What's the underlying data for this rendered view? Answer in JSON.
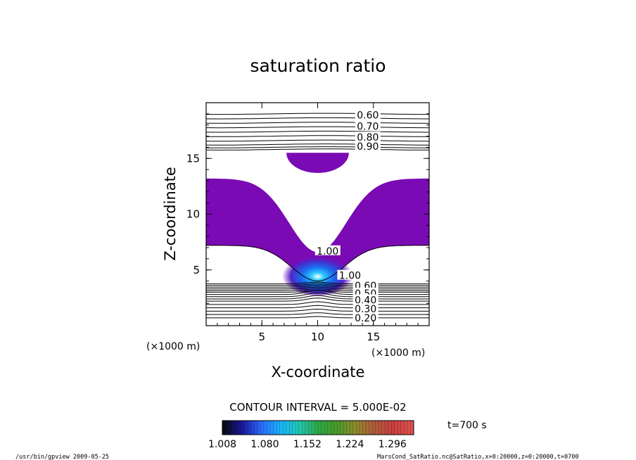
{
  "chart_data": {
    "type": "heatmap",
    "title": "saturation ratio",
    "xlabel": "X-coordinate",
    "ylabel": "Z-coordinate",
    "x_unit_label": "(×1000 m)",
    "z_unit_label": "(×1000 m)",
    "xlim": [
      0,
      20
    ],
    "ylim": [
      0,
      20
    ],
    "x_ticks": [
      5,
      10,
      15
    ],
    "y_ticks": [
      5,
      10,
      15
    ],
    "x_tick_labels": [
      "5",
      "10",
      "15"
    ],
    "y_tick_labels": [
      "5",
      "10",
      "15"
    ],
    "grid": false,
    "contour_interval_label": "CONTOUR INTERVAL = 5.000E-02",
    "time_label": "t=700  s",
    "contour_labels": [
      {
        "text": "0.60",
        "x": 14.5,
        "z": 18.9
      },
      {
        "text": "0.70",
        "x": 14.5,
        "z": 17.9
      },
      {
        "text": "0.80",
        "x": 14.5,
        "z": 16.9
      },
      {
        "text": "0.90",
        "x": 14.5,
        "z": 16.1
      },
      {
        "text": "1.00",
        "x": 10.9,
        "z": 6.7
      },
      {
        "text": "1.00",
        "x": 12.9,
        "z": 4.5
      },
      {
        "text": "0.60",
        "x": 14.3,
        "z": 3.6
      },
      {
        "text": "0.50",
        "x": 14.3,
        "z": 2.9
      },
      {
        "text": "0.40",
        "x": 14.3,
        "z": 2.3
      },
      {
        "text": "0.30",
        "x": 14.3,
        "z": 1.5
      },
      {
        "text": "0.20",
        "x": 14.3,
        "z": 0.7
      }
    ],
    "colorbar": {
      "min": 1.008,
      "max": 1.332,
      "tick_labels": [
        "1.008",
        "1.080",
        "1.152",
        "1.224",
        "1.296"
      ],
      "colors": [
        "#0a0a14",
        "#1a1aa0",
        "#2a6cff",
        "#19b4ff",
        "#22c8b4",
        "#2ea846",
        "#4a9a2a",
        "#8e8a2c",
        "#b05a3a",
        "#c84040",
        "#e05050"
      ]
    },
    "supersaturated_fill_color": "#7a0ab4",
    "core_color": "#1a8cff"
  },
  "footer": {
    "left": "/usr/bin/gpview   2009-05-25",
    "right": "MarsCond_SatRatio.nc@SatRatio,x=0:20000,z=0:20000,t=0700"
  }
}
